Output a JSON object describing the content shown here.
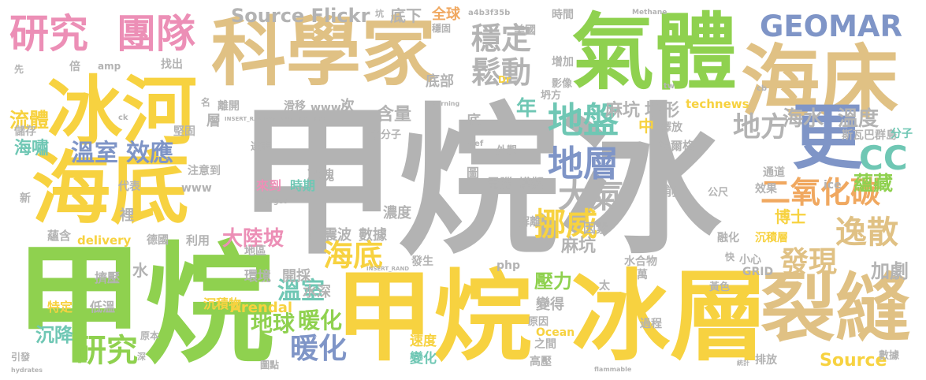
{
  "palette": {
    "gray": "#b3b3b3",
    "green": "#8fd14f",
    "yellow": "#f7d240",
    "tan": "#e0c184",
    "pink": "#ec8fb6",
    "blue": "#7f95c7",
    "orange": "#f0a860",
    "teal": "#6fc7b4",
    "red": "#ee7f6d"
  },
  "words": [
    {
      "text": "甲烷冰",
      "color": "gray"
    },
    {
      "text": "甲烷",
      "color": "green"
    },
    {
      "text": "甲烷",
      "color": "yellow"
    },
    {
      "text": "冰層",
      "color": "yellow"
    },
    {
      "text": "氣體",
      "color": "green"
    },
    {
      "text": "科學家",
      "color": "tan"
    },
    {
      "text": "海床",
      "color": "tan"
    },
    {
      "text": "冰河",
      "color": "yellow"
    },
    {
      "text": "海底",
      "color": "yellow"
    },
    {
      "text": "裂縫",
      "color": "tan"
    },
    {
      "text": "更",
      "color": "blue"
    },
    {
      "text": "研究",
      "color": "pink"
    },
    {
      "text": "團隊",
      "color": "pink"
    },
    {
      "text": "Source Flickr",
      "color": "gray"
    },
    {
      "text": "GEOMAR",
      "color": "blue"
    },
    {
      "text": "穩定",
      "color": "gray"
    },
    {
      "text": "鬆動",
      "color": "gray"
    },
    {
      "text": "地盤",
      "color": "teal"
    },
    {
      "text": "地方",
      "color": "gray"
    },
    {
      "text": "地層",
      "color": "blue"
    },
    {
      "text": "大氣",
      "color": "gray"
    },
    {
      "text": "二氧化碳",
      "color": "orange"
    },
    {
      "text": "CC",
      "color": "teal"
    },
    {
      "text": "挪威",
      "color": "yellow"
    },
    {
      "text": "海底",
      "color": "yellow"
    },
    {
      "text": "逸散",
      "color": "tan"
    },
    {
      "text": "發現",
      "color": "tan"
    },
    {
      "text": "研究",
      "color": "green"
    },
    {
      "text": "暖化",
      "color": "blue"
    },
    {
      "text": "地球",
      "color": "green"
    },
    {
      "text": "暖化",
      "color": "green"
    },
    {
      "text": "溫室",
      "color": "teal"
    },
    {
      "text": "溫室",
      "color": "blue"
    },
    {
      "text": "效應",
      "color": "blue"
    },
    {
      "text": "流體",
      "color": "yellow"
    },
    {
      "text": "海嘯",
      "color": "teal"
    },
    {
      "text": "大陸坡",
      "color": "pink"
    },
    {
      "text": "麻坑",
      "color": "gray"
    },
    {
      "text": "麻坑",
      "color": "gray"
    },
    {
      "text": "地形",
      "color": "gray"
    },
    {
      "text": "含量",
      "color": "gray"
    },
    {
      "text": "年",
      "color": "teal"
    },
    {
      "text": "海水",
      "color": "gray"
    },
    {
      "text": "溫度",
      "color": "gray"
    },
    {
      "text": "蘊藏",
      "color": "green"
    },
    {
      "text": "壓力",
      "color": "green"
    },
    {
      "text": "加劇",
      "color": "gray"
    },
    {
      "text": "博士",
      "color": "yellow"
    },
    {
      "text": "Source",
      "color": "yellow"
    },
    {
      "text": "底下",
      "color": "gray"
    },
    {
      "text": "底部",
      "color": "gray"
    },
    {
      "text": "全球",
      "color": "orange"
    },
    {
      "text": "冰塊",
      "color": "gray"
    },
    {
      "text": "來到",
      "color": "pink"
    },
    {
      "text": "時期",
      "color": "teal"
    },
    {
      "text": "地震波",
      "color": "gray"
    },
    {
      "text": "數據",
      "color": "gray"
    },
    {
      "text": "電腦",
      "color": "gray"
    },
    {
      "text": "模擬",
      "color": "gray"
    },
    {
      "text": "濃度",
      "color": "gray"
    },
    {
      "text": "開採",
      "color": "gray"
    },
    {
      "text": "水深",
      "color": "gray"
    },
    {
      "text": "沉降",
      "color": "teal"
    },
    {
      "text": "速度",
      "color": "yellow"
    },
    {
      "text": "變化",
      "color": "teal"
    },
    {
      "text": "變得",
      "color": "gray"
    },
    {
      "text": "沉積物",
      "color": "yellow"
    },
    {
      "text": "Arendal",
      "color": "yellow"
    },
    {
      "text": "環境",
      "color": "gray"
    },
    {
      "text": "擠壓",
      "color": "gray"
    },
    {
      "text": "低溫",
      "color": "gray"
    },
    {
      "text": "特定",
      "color": "yellow"
    },
    {
      "text": "水",
      "color": "gray"
    },
    {
      "text": "裡",
      "color": "gray"
    },
    {
      "text": "層",
      "color": "gray"
    },
    {
      "text": "次",
      "color": "gray"
    },
    {
      "text": "底",
      "color": "gray"
    },
    {
      "text": "中",
      "color": "yellow"
    },
    {
      "text": "前",
      "color": "gray"
    },
    {
      "text": "因素",
      "color": "gray"
    },
    {
      "text": "圖",
      "color": "gray"
    },
    {
      "text": "解離",
      "color": "gray"
    },
    {
      "text": "時間",
      "color": "gray"
    },
    {
      "text": "美國",
      "color": "gray"
    },
    {
      "text": "增加",
      "color": "gray"
    },
    {
      "text": "影像",
      "color": "gray"
    },
    {
      "text": "坍方",
      "color": "gray"
    },
    {
      "text": "technews",
      "color": "yellow"
    },
    {
      "text": "釋放",
      "color": "gray"
    },
    {
      "text": "埃爾格",
      "color": "gray"
    },
    {
      "text": "斯瓦巴群島",
      "color": "gray"
    },
    {
      "text": "分子",
      "color": "teal"
    },
    {
      "text": "通道",
      "color": "gray"
    },
    {
      "text": "效果",
      "color": "gray"
    },
    {
      "text": "ice",
      "color": "gray"
    },
    {
      "text": "公尺",
      "color": "gray"
    },
    {
      "text": "融化",
      "color": "gray"
    },
    {
      "text": "沉積層",
      "color": "yellow"
    },
    {
      "text": "小心",
      "color": "gray"
    },
    {
      "text": "GRID",
      "color": "gray"
    },
    {
      "text": "水合物",
      "color": "gray"
    },
    {
      "text": "黃色",
      "color": "gray"
    },
    {
      "text": "過程",
      "color": "gray"
    },
    {
      "text": "排放",
      "color": "gray"
    },
    {
      "text": "數據",
      "color": "gray"
    },
    {
      "text": "高壓",
      "color": "gray"
    },
    {
      "text": "之間",
      "color": "gray"
    },
    {
      "text": "原因",
      "color": "gray"
    },
    {
      "text": "Ocean",
      "color": "yellow"
    },
    {
      "text": "發生",
      "color": "gray"
    },
    {
      "text": "php",
      "color": "gray"
    },
    {
      "text": "太",
      "color": "gray"
    },
    {
      "text": "萬",
      "color": "gray"
    },
    {
      "text": "地區",
      "color": "gray"
    },
    {
      "text": "利用",
      "color": "gray"
    },
    {
      "text": "德國",
      "color": "gray"
    },
    {
      "text": "delivery",
      "color": "yellow"
    },
    {
      "text": "蘊含",
      "color": "gray"
    },
    {
      "text": "新",
      "color": "gray"
    },
    {
      "text": "代表",
      "color": "gray"
    },
    {
      "text": "注意到",
      "color": "gray"
    },
    {
      "text": "www",
      "color": "gray"
    },
    {
      "text": "儲存",
      "color": "gray"
    },
    {
      "text": "堅固",
      "color": "gray"
    },
    {
      "text": "離開",
      "color": "gray"
    },
    {
      "text": "滑移",
      "color": "gray"
    },
    {
      "text": "www5",
      "color": "gray"
    },
    {
      "text": "水分子",
      "color": "gray"
    },
    {
      "text": "外觀",
      "color": "gray"
    },
    {
      "text": "達志",
      "color": "gray"
    },
    {
      "text": "找出",
      "color": "gray"
    },
    {
      "text": "倍",
      "color": "gray"
    },
    {
      "text": "amp",
      "color": "gray"
    },
    {
      "text": "先",
      "color": "gray"
    },
    {
      "text": "名",
      "color": "gray"
    },
    {
      "text": "a4b3f35b",
      "color": "gray"
    },
    {
      "text": "Methane",
      "color": "gray"
    },
    {
      "text": "burning",
      "color": "gray"
    },
    {
      "text": "flammable",
      "color": "gray"
    },
    {
      "text": "hydrates",
      "color": "gray"
    },
    {
      "text": "引發",
      "color": "gray"
    },
    {
      "text": "深",
      "color": "gray"
    },
    {
      "text": "原本",
      "color": "gray"
    },
    {
      "text": "圖點",
      "color": "gray"
    },
    {
      "text": "統計",
      "color": "gray"
    },
    {
      "text": "INSERT_RANDOM_NUMBER_HERE",
      "color": "gray"
    },
    {
      "text": "INSERT_RAND",
      "color": "gray"
    },
    {
      "text": "ck",
      "color": "gray"
    },
    {
      "text": "cb",
      "color": "gray"
    },
    {
      "text": "tw",
      "color": "gray"
    },
    {
      "text": "Dr",
      "color": "gray"
    },
    {
      "text": "href",
      "color": "gray"
    },
    {
      "text": "target",
      "color": "gray"
    },
    {
      "text": "快",
      "color": "gray"
    },
    {
      "text": "坑",
      "color": "gray"
    },
    {
      "text": "穩固",
      "color": "gray"
    }
  ]
}
